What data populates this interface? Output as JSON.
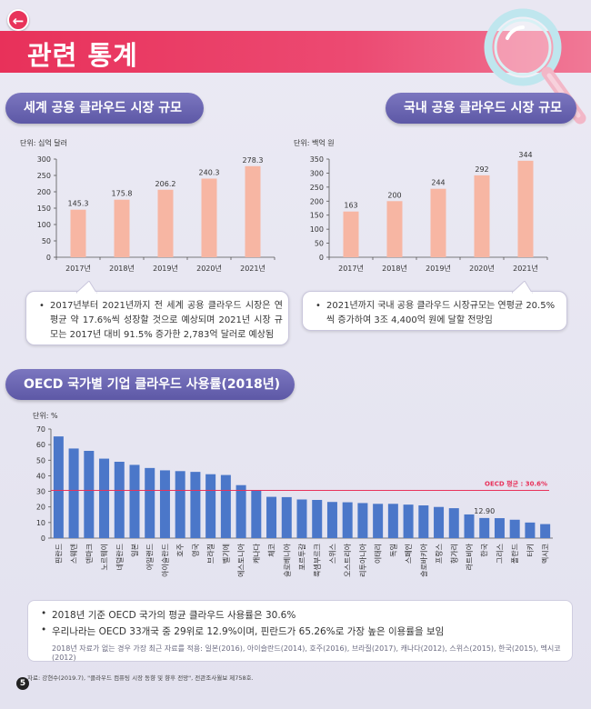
{
  "header": {
    "back_icon": "back-arrow-icon",
    "back_glyph": "←",
    "title": "관련 통계",
    "accent": "#e8315a"
  },
  "world": {
    "pill_title": "세계 공용 클라우드 시장 규모",
    "unit": "단위: 십억 달러",
    "callout": "2017년부터 2021년까지 전 세계 공용 클라우드 시장은 연평균 약 17.6%씩 성장할 것으로 예상되며 2021년 시장 규모는 2017년 대비 91.5% 증가한 2,783억 달러로 예상됨"
  },
  "korea": {
    "pill_title": "국내 공용 클라우드 시장 규모",
    "unit": "단위: 백억 원",
    "callout": "2021년까지 국내 공용 클라우드 시장규모는 연평균 20.5%씩 증가하여 3조 4,400억 원에 달할 전망임"
  },
  "oecd": {
    "pill_title": "OECD 국가별 기업 클라우드 사용률(2018년)",
    "unit": "단위: %",
    "avg_label": "OECD 평균 : 30.6%",
    "notes": [
      "2018년 기준 OECD 국가의 평균 클라우드 사용률은 30.6%",
      "우리나라는 OECD 33개국 중 29위로 12.9%이며, 핀란드가 65.26%로 가장 높은 이용률을 보임"
    ],
    "footnote": "2018년 자료가 없는 경우 가장 최근 자료를 적용: 일본(2016), 아이슬란드(2014), 호주(2016), 브라질(2017), 캐나다(2012), 스위스(2015), 한국(2015), 멕시코(2012)"
  },
  "source": "자료: 강현수(2019.7), \"클라우드 컴퓨팅 시장 동향 및 향후 전망\", 전관조사월보 제758호.",
  "page_number": "5",
  "chart_data": [
    {
      "type": "bar",
      "title": "세계 공용 클라우드 시장 규모",
      "categories": [
        "2017년",
        "2018년",
        "2019년",
        "2020년",
        "2021년"
      ],
      "values": [
        145.3,
        175.8,
        206.2,
        240.3,
        278.3
      ],
      "value_labels": [
        "145.3",
        "175.8",
        "206.2",
        "240.3",
        "278.3"
      ],
      "ylim": [
        0,
        300
      ],
      "yticks": [
        0,
        50,
        100,
        150,
        200,
        250,
        300
      ],
      "ylabel": "십억 달러",
      "color": "#f7b6a3"
    },
    {
      "type": "bar",
      "title": "국내 공용 클라우드 시장 규모",
      "categories": [
        "2017년",
        "2018년",
        "2019년",
        "2020년",
        "2021년"
      ],
      "values": [
        163,
        200,
        244,
        292,
        344
      ],
      "value_labels": [
        "163",
        "200",
        "244",
        "292",
        "344"
      ],
      "ylim": [
        0,
        350
      ],
      "yticks": [
        0,
        50,
        100,
        150,
        200,
        250,
        300,
        350
      ],
      "ylabel": "백억 원",
      "color": "#f7b6a3"
    },
    {
      "type": "bar",
      "title": "OECD 국가별 기업 클라우드 사용률(2018년)",
      "categories": [
        "핀란드",
        "스웨덴",
        "덴마크",
        "노르웨이",
        "네덜란드",
        "일본",
        "아일랜드",
        "아이슬란드",
        "호주",
        "영국",
        "브라질",
        "벨기에",
        "에스토니아",
        "캐나다",
        "체코",
        "슬로베니아",
        "포르투갈",
        "룩셈부르크",
        "스위스",
        "오스트리아",
        "리투아니아",
        "이태리",
        "독일",
        "스페인",
        "슬로바키아",
        "프랑스",
        "헝가리",
        "라트비아",
        "한국",
        "그리스",
        "폴란드",
        "터키",
        "멕시코"
      ],
      "values": [
        65.26,
        57.5,
        56,
        51,
        49,
        47,
        45,
        43.5,
        43,
        42.5,
        41,
        40.5,
        34,
        30.5,
        26.5,
        26.3,
        24.8,
        24.5,
        23.2,
        23,
        22.5,
        22,
        22,
        21.5,
        21,
        20,
        19.2,
        15.2,
        12.9,
        12.8,
        11.8,
        10,
        9
      ],
      "annotated": {
        "index": 28,
        "label": "12.90"
      },
      "average": 30.6,
      "ylim": [
        0,
        70
      ],
      "yticks": [
        0,
        10,
        20,
        30,
        40,
        50,
        60,
        70
      ],
      "ylabel": "%",
      "color": "#4b77c9",
      "avg_color": "#e8315a"
    }
  ]
}
